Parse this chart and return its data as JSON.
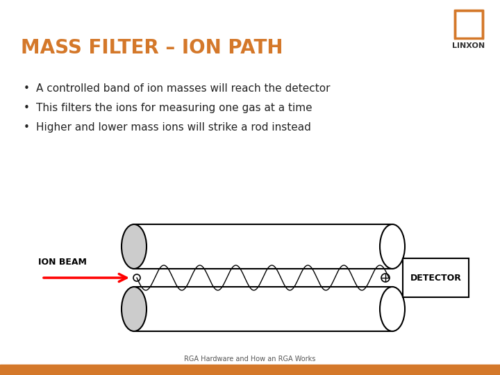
{
  "title": "MASS FILTER – ION PATH",
  "title_color": "#D4782A",
  "background_color": "#ffffff",
  "bullets": [
    "A controlled band of ion masses will reach the detector",
    "This filters the ions for measuring one gas at a time",
    "Higher and lower mass ions will strike a rod instead"
  ],
  "bullet_color": "#222222",
  "ion_beam_label": "ION BEAM",
  "detector_label": "DETECTOR",
  "footer": "RGA Hardware and How an RGA Works",
  "orange_color": "#D4782A",
  "bottom_bar_color": "#D4782A",
  "logo_color": "#D4782A"
}
